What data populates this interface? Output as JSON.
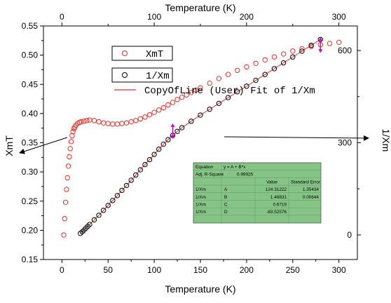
{
  "chart_data": {
    "type": "scatter",
    "title": "",
    "xlabel_bottom": "Temperature (K)",
    "xlabel_top": "Temperature (K)",
    "ylabel_left": "XmT",
    "ylabel_right": "1/Xm",
    "xlim": [
      -20,
      320
    ],
    "ylim_left": [
      0.15,
      0.55
    ],
    "ylim_right": [
      -80,
      680
    ],
    "x_ticks": [
      0,
      50,
      100,
      150,
      200,
      250,
      300
    ],
    "x_top_ticks": [
      0,
      100,
      200,
      300
    ],
    "y_left_ticks": [
      "0.15",
      "0.20",
      "0.25",
      "0.30",
      "0.35",
      "0.40",
      "0.45",
      "0.50",
      "0.55"
    ],
    "y_right_ticks": [
      0,
      300,
      600
    ],
    "grid": false,
    "legend_position": "top-center",
    "legend": [
      {
        "label": "XmT",
        "marker": "circle",
        "color": "#e8322a"
      },
      {
        "label": "1/Xm",
        "marker": "circle",
        "color": "#000000"
      },
      {
        "label": "CopyOfLine (User) Fit of 1/Xm",
        "marker": "line",
        "color": "#e8322a"
      }
    ],
    "series": [
      {
        "name": "XmT",
        "axis": "left",
        "color": "#e8322a",
        "x": [
          2,
          3,
          4,
          5,
          6,
          7,
          8,
          9,
          10,
          11,
          12,
          13,
          14,
          15,
          17,
          19,
          21,
          24,
          27,
          30,
          35,
          40,
          45,
          50,
          55,
          60,
          65,
          70,
          75,
          80,
          85,
          90,
          95,
          100,
          105,
          110,
          115,
          120,
          125,
          130,
          135,
          140,
          145,
          150,
          160,
          170,
          180,
          190,
          200,
          210,
          220,
          230,
          240,
          250,
          260,
          270,
          280,
          290,
          300
        ],
        "y": [
          0.192,
          0.22,
          0.248,
          0.27,
          0.29,
          0.31,
          0.326,
          0.34,
          0.352,
          0.362,
          0.369,
          0.374,
          0.377,
          0.38,
          0.383,
          0.385,
          0.386,
          0.387,
          0.388,
          0.389,
          0.388,
          0.386,
          0.384,
          0.383,
          0.382,
          0.382,
          0.383,
          0.384,
          0.386,
          0.388,
          0.391,
          0.394,
          0.398,
          0.402,
          0.406,
          0.41,
          0.415,
          0.419,
          0.424,
          0.428,
          0.432,
          0.436,
          0.44,
          0.444,
          0.452,
          0.46,
          0.467,
          0.474,
          0.48,
          0.486,
          0.492,
          0.497,
          0.502,
          0.507,
          0.511,
          0.515,
          0.518,
          0.52,
          0.522
        ]
      },
      {
        "name": "1/Xm",
        "axis": "right",
        "color": "#000000",
        "x": [
          20,
          22,
          24,
          26,
          28,
          30,
          35,
          40,
          45,
          50,
          55,
          60,
          65,
          70,
          75,
          80,
          85,
          90,
          95,
          100,
          105,
          110,
          115,
          120,
          125,
          130,
          140,
          150,
          160,
          170,
          180,
          190,
          200,
          210,
          220,
          230,
          240,
          250,
          260,
          270,
          280
        ],
        "y": [
          5,
          10,
          16,
          22,
          28,
          34,
          49,
          64,
          80,
          96,
          112,
          128,
          145,
          161,
          178,
          195,
          212,
          229,
          245,
          262,
          279,
          295,
          310,
          324,
          337,
          349,
          370,
          390,
          409,
          428,
          447,
          466,
          484,
          503,
          522,
          541,
          560,
          579,
          598,
          617,
          636
        ]
      }
    ],
    "fit_table": {
      "equation_label": "Equation",
      "equation": "y = A + B*x",
      "adj_r_label": "Adj. R-Square",
      "adj_r": "0.99925",
      "col_value": "Value",
      "col_error": "Standard Error",
      "rows": [
        {
          "name": "1/Xm",
          "param": "A",
          "value": "124.31222",
          "error": "1.35434"
        },
        {
          "name": "1/Xm",
          "param": "B",
          "value": "1.48831",
          "error": "0.00644"
        },
        {
          "name": "1/Xm",
          "param": "C",
          "value": "0.6719",
          "error": ""
        },
        {
          "name": "1/Xm",
          "param": "D",
          "value": "-83.52576",
          "error": ""
        }
      ]
    },
    "colors": {
      "fit_table_bg": "#86c486",
      "arrow_marker": "#d000d0"
    }
  }
}
